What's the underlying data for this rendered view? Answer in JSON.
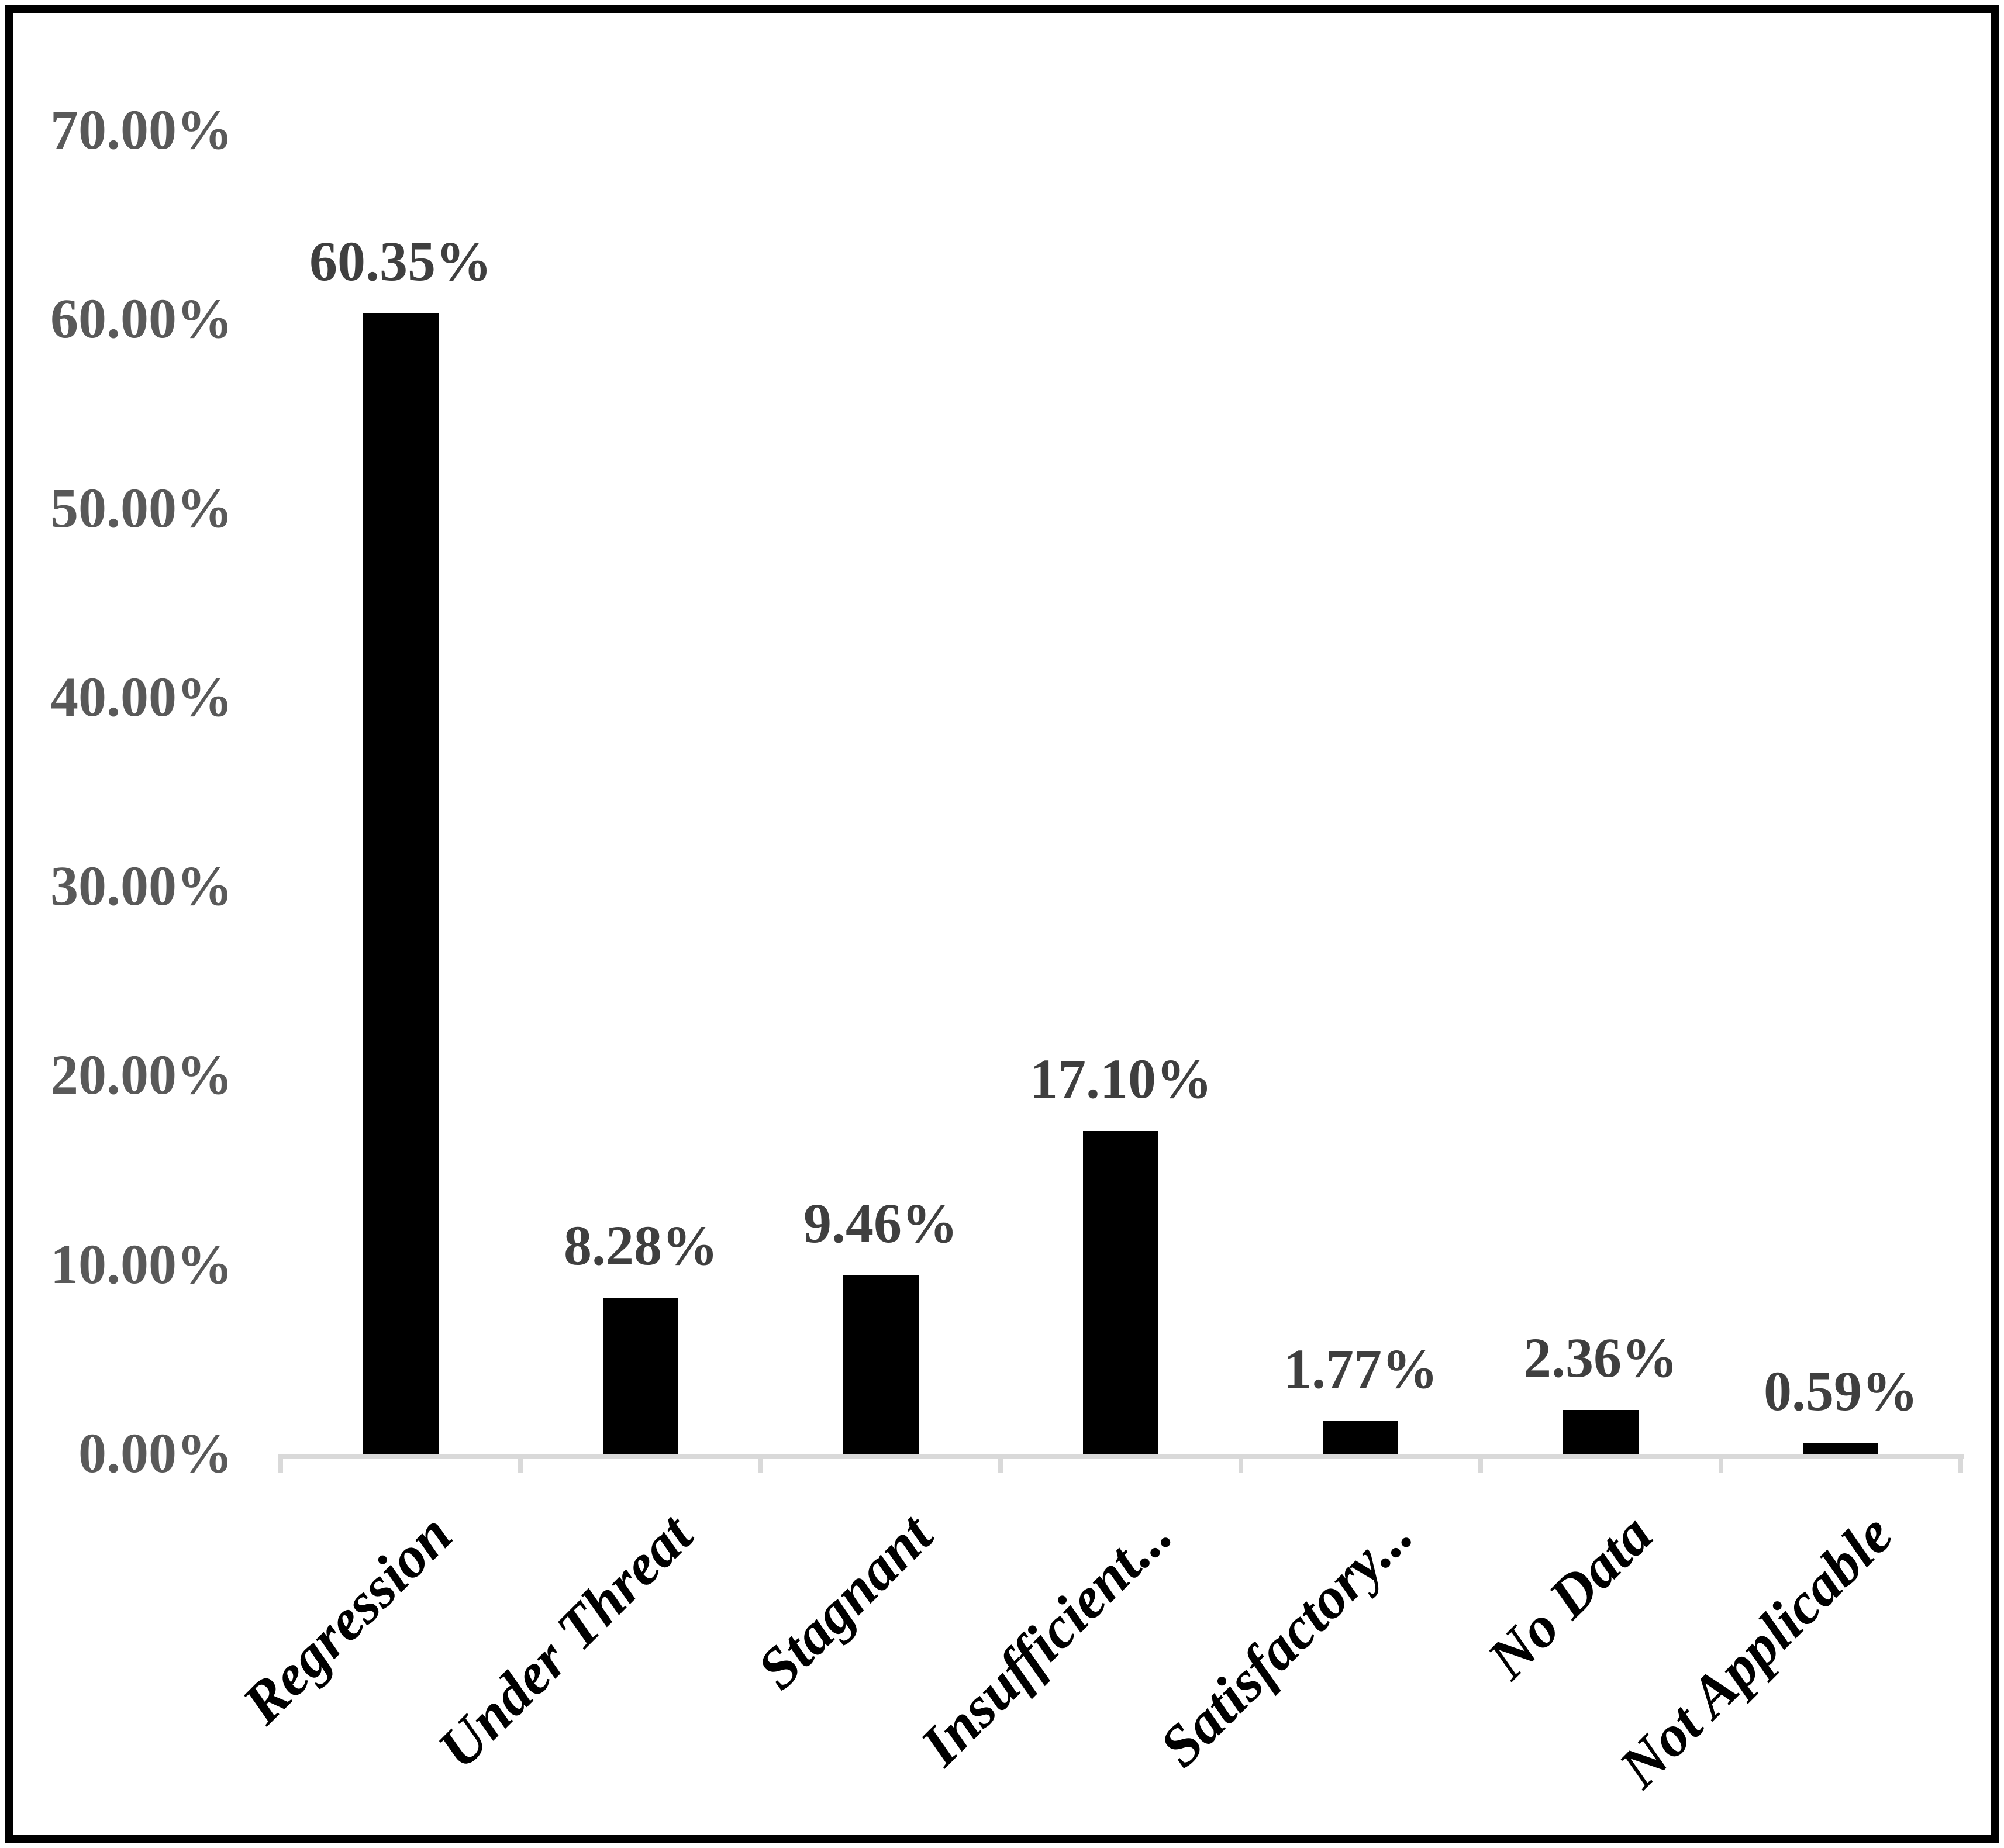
{
  "chart_data": {
    "type": "bar",
    "categories": [
      "Regression",
      "Under Threat",
      "Stagnant",
      "Insufficient...",
      "Satisfactory...",
      "No Data",
      "Not Applicable"
    ],
    "values": [
      60.35,
      8.28,
      9.46,
      17.1,
      1.77,
      2.36,
      0.59
    ],
    "data_labels": [
      "60.35%",
      "8.28%",
      "9.46%",
      "17.10%",
      "1.77%",
      "2.36%",
      "0.59%"
    ],
    "y_tick_labels": [
      "0.00%",
      "10.00%",
      "20.00%",
      "30.00%",
      "40.00%",
      "50.00%",
      "60.00%",
      "70.00%"
    ],
    "y_tick_values": [
      0,
      10,
      20,
      30,
      40,
      50,
      60,
      70
    ],
    "title": "",
    "xlabel": "",
    "ylabel": "",
    "ylim": [
      0,
      70
    ],
    "grid": false,
    "legend": false,
    "colors": {
      "bar": "#000000",
      "axis_line": "#d9d9d9",
      "y_tick_label": "#595959",
      "data_label": "#3f3f3f",
      "category_label": "#000000",
      "frame_border": "#000000",
      "background": "#ffffff"
    }
  }
}
